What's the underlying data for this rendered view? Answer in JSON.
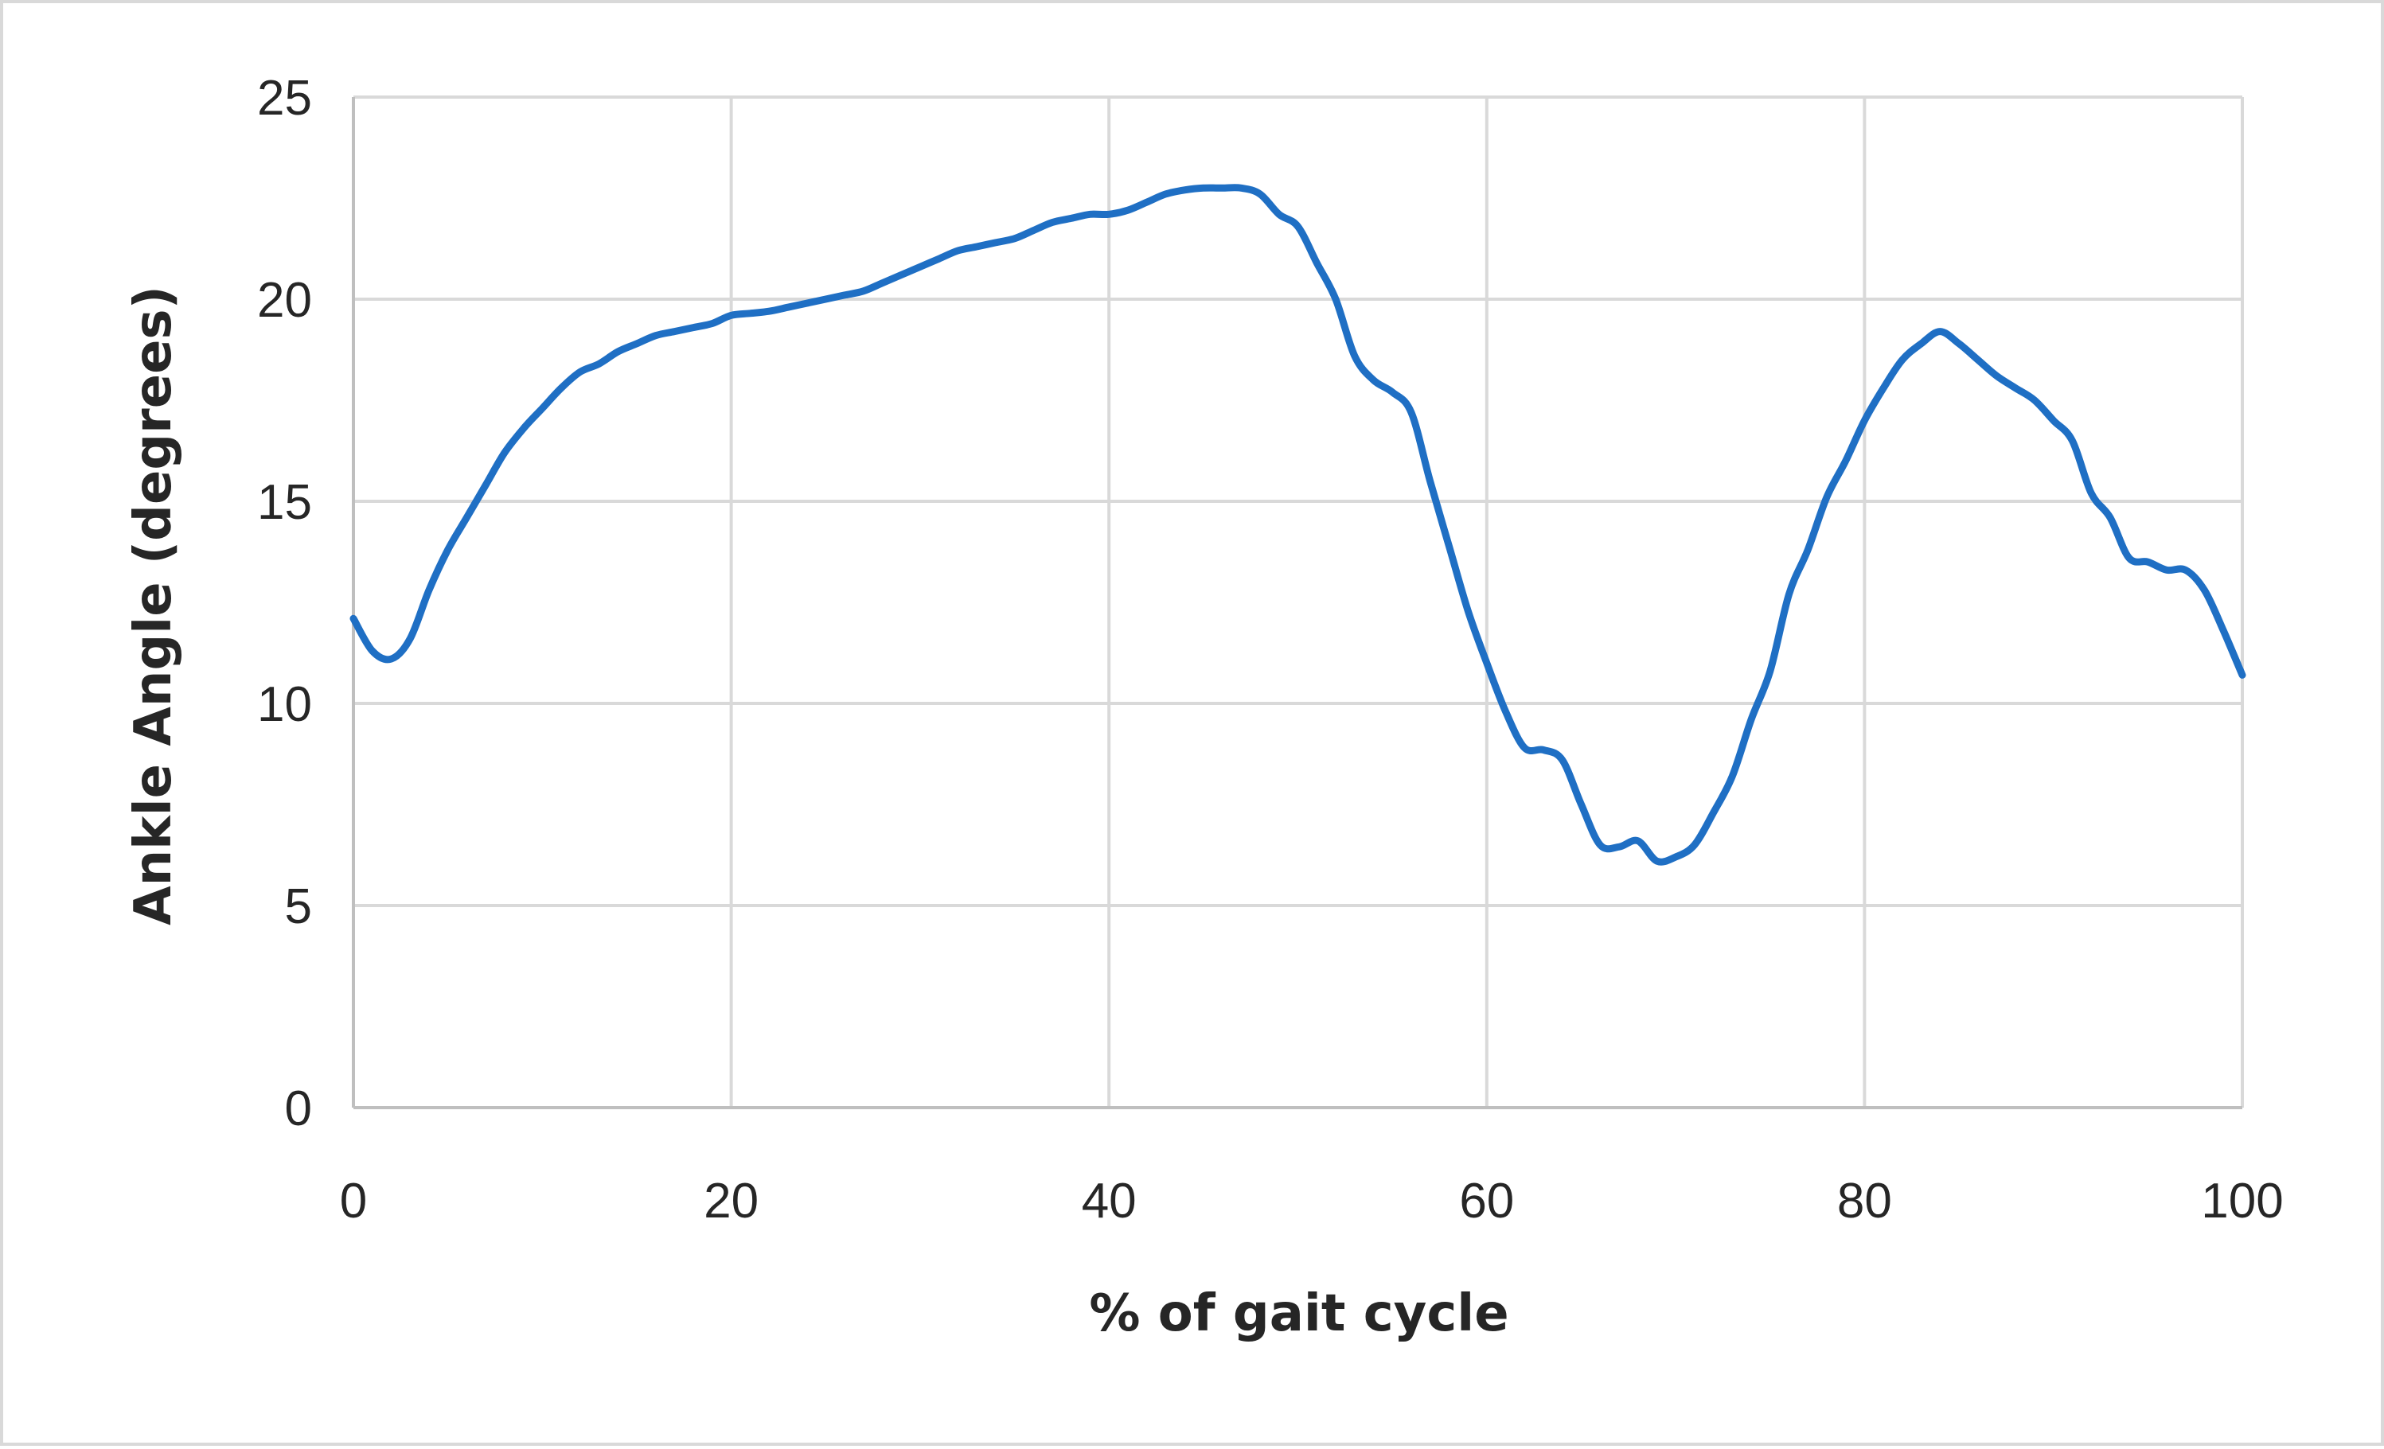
{
  "chart_data": {
    "type": "line",
    "title": "",
    "xlabel": "% of gait cycle",
    "ylabel": "Ankle Angle (degrees)",
    "xlim": [
      0,
      100
    ],
    "ylim": [
      0,
      25
    ],
    "x_ticks": [
      0,
      20,
      40,
      60,
      80,
      100
    ],
    "y_ticks": [
      0,
      5,
      10,
      15,
      20,
      25
    ],
    "grid": true,
    "legend": "none",
    "line_color": "#1f6fc4",
    "gridline_color": "#d9d9d9",
    "series": [
      {
        "x": [
          0,
          1,
          2,
          3,
          4,
          5,
          6,
          7,
          8,
          9,
          10,
          11,
          12,
          13,
          14,
          15,
          16,
          17,
          18,
          19,
          20,
          21,
          22,
          23,
          24,
          25,
          26,
          27,
          28,
          29,
          30,
          31,
          32,
          33,
          34,
          35,
          36,
          37,
          38,
          39,
          40,
          41,
          42,
          43,
          44,
          45,
          46,
          47,
          48,
          49,
          50,
          51,
          52,
          53,
          54,
          55,
          56,
          57,
          58,
          59,
          60,
          61,
          62,
          63,
          64,
          65,
          66,
          67,
          68,
          69,
          70,
          71,
          72,
          73,
          74,
          75,
          76,
          77,
          78,
          79,
          80,
          81,
          82,
          83,
          84,
          85,
          86,
          87,
          88,
          89,
          90,
          91,
          92,
          93,
          94,
          95,
          96,
          97,
          98,
          99,
          100
        ],
        "values": [
          12.1,
          11.3,
          11.1,
          11.6,
          12.8,
          13.8,
          14.6,
          15.4,
          16.2,
          16.8,
          17.3,
          17.8,
          18.2,
          18.4,
          18.7,
          18.9,
          19.1,
          19.2,
          19.3,
          19.4,
          19.6,
          19.65,
          19.7,
          19.8,
          19.9,
          20.0,
          20.1,
          20.2,
          20.4,
          20.6,
          20.8,
          21.0,
          21.2,
          21.3,
          21.4,
          21.5,
          21.7,
          21.9,
          22.0,
          22.1,
          22.1,
          22.2,
          22.4,
          22.6,
          22.7,
          22.75,
          22.75,
          22.75,
          22.6,
          22.1,
          21.8,
          20.9,
          20.0,
          18.6,
          18.0,
          17.7,
          17.2,
          15.5,
          13.9,
          12.3,
          11.0,
          9.8,
          8.9,
          8.85,
          8.6,
          7.5,
          6.5,
          6.45,
          6.6,
          6.1,
          6.2,
          6.5,
          7.3,
          8.2,
          9.6,
          10.8,
          12.7,
          13.8,
          15.1,
          16.0,
          17.0,
          17.8,
          18.5,
          18.9,
          19.2,
          18.9,
          18.5,
          18.1,
          17.8,
          17.5,
          17.0,
          16.5,
          15.2,
          14.6,
          13.6,
          13.5,
          13.3,
          13.3,
          12.8,
          11.8,
          10.7
        ]
      }
    ]
  }
}
